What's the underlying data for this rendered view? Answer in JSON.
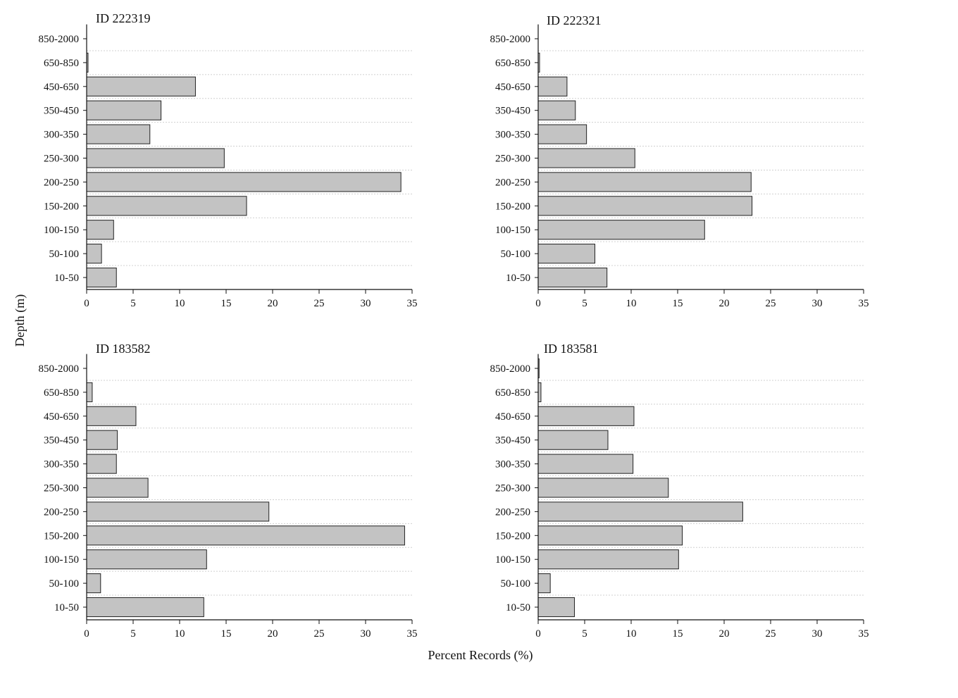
{
  "y_axis_title": "Depth (m)",
  "x_axis_title": "Percent Records (%)",
  "chart_data": [
    {
      "type": "bar",
      "orientation": "horizontal",
      "title": "ID 222319",
      "categories": [
        "10-50",
        "50-100",
        "100-150",
        "150-200",
        "200-250",
        "250-300",
        "300-350",
        "350-450",
        "450-650",
        "650-850",
        "850-2000"
      ],
      "values": [
        3.2,
        1.6,
        2.9,
        17.2,
        33.8,
        14.8,
        6.8,
        8.0,
        11.7,
        0.15,
        0
      ],
      "xlim": [
        0,
        35
      ],
      "xticks": [
        0,
        5,
        10,
        15,
        20,
        25,
        30,
        35
      ],
      "grid": "horizontal dotted"
    },
    {
      "type": "bar",
      "orientation": "horizontal",
      "title": "ID 222321",
      "categories": [
        "10-50",
        "50-100",
        "100-150",
        "150-200",
        "200-250",
        "250-300",
        "300-350",
        "350-450",
        "450-650",
        "650-850",
        "850-2000"
      ],
      "values": [
        7.4,
        6.1,
        17.9,
        23.0,
        22.9,
        10.4,
        5.2,
        4.0,
        3.1,
        0.15,
        0
      ],
      "xlim": [
        0,
        35
      ],
      "xticks": [
        0,
        5,
        10,
        15,
        20,
        25,
        30,
        35
      ],
      "grid": "horizontal dotted"
    },
    {
      "type": "bar",
      "orientation": "horizontal",
      "title": "ID 183582",
      "categories": [
        "10-50",
        "50-100",
        "100-150",
        "150-200",
        "200-250",
        "250-300",
        "300-350",
        "350-450",
        "450-650",
        "650-850",
        "850-2000"
      ],
      "values": [
        12.6,
        1.5,
        12.9,
        34.2,
        19.6,
        6.6,
        3.2,
        3.3,
        5.3,
        0.6,
        0
      ],
      "xlim": [
        0,
        35
      ],
      "xticks": [
        0,
        5,
        10,
        15,
        20,
        25,
        30,
        35
      ],
      "grid": "horizontal dotted"
    },
    {
      "type": "bar",
      "orientation": "horizontal",
      "title": "ID 183581",
      "categories": [
        "10-50",
        "50-100",
        "100-150",
        "150-200",
        "200-250",
        "250-300",
        "300-350",
        "350-450",
        "450-650",
        "650-850",
        "850-2000"
      ],
      "values": [
        3.9,
        1.3,
        15.1,
        15.5,
        22.0,
        14.0,
        10.2,
        7.5,
        10.3,
        0.3,
        0.1
      ],
      "xlim": [
        0,
        35
      ],
      "xticks": [
        0,
        5,
        10,
        15,
        20,
        25,
        30,
        35
      ],
      "grid": "horizontal dotted"
    }
  ]
}
